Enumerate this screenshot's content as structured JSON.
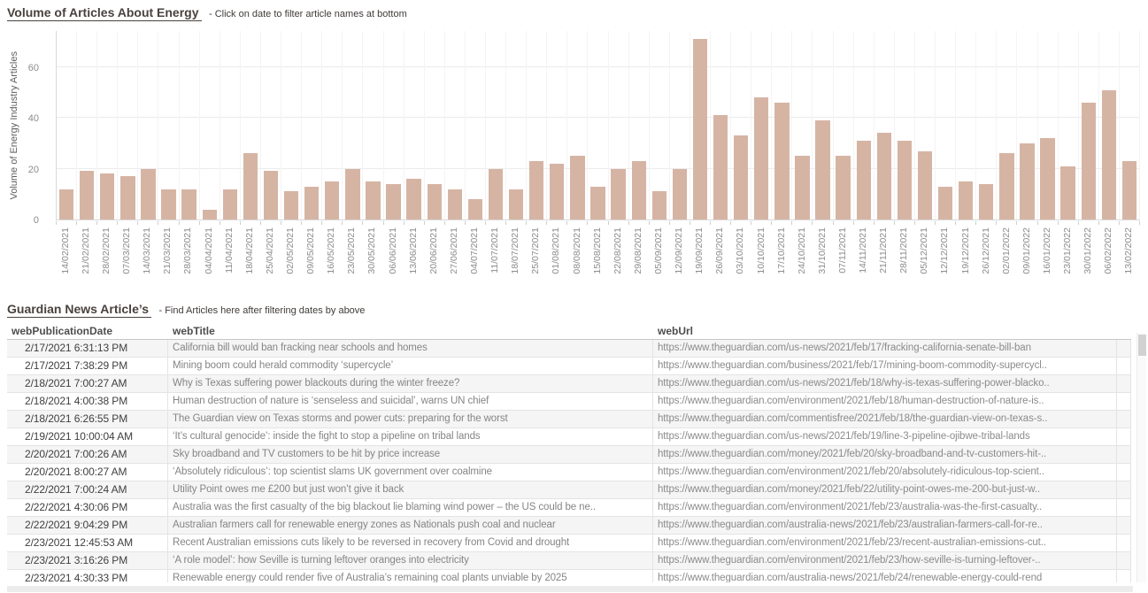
{
  "chart": {
    "title": "Volume of Articles About Energy",
    "subtitle": "- Click on date to filter article names at bottom",
    "y_axis_label": "Volume of Energy Industry Articles"
  },
  "chart_data": {
    "type": "bar",
    "title": "Volume of Articles About Energy",
    "xlabel": "",
    "ylabel": "Volume of Energy Industry Articles",
    "yticks": [
      0,
      20,
      40,
      60
    ],
    "ylim": [
      0,
      75
    ],
    "grid": true,
    "bar_color": "#d6b4a4",
    "categories": [
      "14/02/2021",
      "21/02/2021",
      "28/02/2021",
      "07/03/2021",
      "14/03/2021",
      "21/03/2021",
      "28/03/2021",
      "04/04/2021",
      "11/04/2021",
      "18/04/2021",
      "25/04/2021",
      "02/05/2021",
      "09/05/2021",
      "16/05/2021",
      "23/05/2021",
      "30/05/2021",
      "06/06/2021",
      "13/06/2021",
      "20/06/2021",
      "27/06/2021",
      "04/07/2021",
      "11/07/2021",
      "18/07/2021",
      "25/07/2021",
      "01/08/2021",
      "08/08/2021",
      "15/08/2021",
      "22/08/2021",
      "29/08/2021",
      "05/09/2021",
      "12/09/2021",
      "19/09/2021",
      "26/09/2021",
      "03/10/2021",
      "10/10/2021",
      "17/10/2021",
      "24/10/2021",
      "31/10/2021",
      "07/11/2021",
      "14/11/2021",
      "21/11/2021",
      "28/11/2021",
      "05/12/2021",
      "12/12/2021",
      "19/12/2021",
      "26/12/2021",
      "02/01/2022",
      "09/01/2022",
      "16/01/2022",
      "23/01/2022",
      "30/01/2022",
      "06/02/2022",
      "13/02/2022"
    ],
    "values": [
      12,
      19,
      18,
      17,
      20,
      12,
      12,
      4,
      12,
      26,
      19,
      11,
      13,
      15,
      20,
      15,
      14,
      16,
      14,
      12,
      8,
      20,
      12,
      23,
      22,
      25,
      13,
      20,
      23,
      11,
      20,
      71,
      41,
      33,
      48,
      46,
      25,
      39,
      25,
      31,
      34,
      31,
      27,
      13,
      15,
      14,
      26,
      30,
      32,
      21,
      46,
      51,
      23
    ]
  },
  "table": {
    "title": "Guardian News Article’s",
    "subtitle": "- Find Articles here after filtering dates by above",
    "columns": [
      "webPublicationDate",
      "webTitle",
      "webUrl"
    ],
    "rows": [
      {
        "date": "2/17/2021 6:31:13 PM",
        "title": "California bill would ban fracking near schools and homes",
        "url": "https://www.theguardian.com/us-news/2021/feb/17/fracking-california-senate-bill-ban"
      },
      {
        "date": "2/17/2021 7:38:29 PM",
        "title": "Mining boom could herald commodity ‘supercycle’",
        "url": "https://www.theguardian.com/business/2021/feb/17/mining-boom-commodity-supercycl.."
      },
      {
        "date": "2/18/2021 7:00:27 AM",
        "title": "Why is Texas suffering power blackouts during the winter freeze?",
        "url": "https://www.theguardian.com/us-news/2021/feb/18/why-is-texas-suffering-power-blacko.."
      },
      {
        "date": "2/18/2021 4:00:38 PM",
        "title": "Human destruction of nature is ‘senseless and suicidal’, warns UN chief",
        "url": "https://www.theguardian.com/environment/2021/feb/18/human-destruction-of-nature-is.."
      },
      {
        "date": "2/18/2021 6:26:55 PM",
        "title": "The Guardian view on Texas storms and power cuts: preparing for the worst",
        "url": "https://www.theguardian.com/commentisfree/2021/feb/18/the-guardian-view-on-texas-s.."
      },
      {
        "date": "2/19/2021 10:00:04 AM",
        "title": "‘It’s cultural genocide’: inside the fight to stop a pipeline on tribal lands",
        "url": "https://www.theguardian.com/us-news/2021/feb/19/line-3-pipeline-ojibwe-tribal-lands"
      },
      {
        "date": "2/20/2021 7:00:26 AM",
        "title": "Sky broadband and TV customers to be hit by price increase",
        "url": "https://www.theguardian.com/money/2021/feb/20/sky-broadband-and-tv-customers-hit-.."
      },
      {
        "date": "2/20/2021 8:00:27 AM",
        "title": "‘Absolutely ridiculous’: top scientist slams UK government over coalmine",
        "url": "https://www.theguardian.com/environment/2021/feb/20/absolutely-ridiculous-top-scient.."
      },
      {
        "date": "2/22/2021 7:00:24 AM",
        "title": "Utility Point owes me £200 but just won’t give it back",
        "url": "https://www.theguardian.com/money/2021/feb/22/utility-point-owes-me-200-but-just-w.."
      },
      {
        "date": "2/22/2021 4:30:06 PM",
        "title": "Australia was the first casualty of the big blackout lie blaming wind power – the US could be ne..",
        "url": "https://www.theguardian.com/environment/2021/feb/23/australia-was-the-first-casualty.."
      },
      {
        "date": "2/22/2021 9:04:29 PM",
        "title": "Australian farmers call for renewable energy zones as Nationals push coal and nuclear",
        "url": "https://www.theguardian.com/australia-news/2021/feb/23/australian-farmers-call-for-re.."
      },
      {
        "date": "2/23/2021 12:45:53 AM",
        "title": "Recent Australian emissions cuts likely to be reversed in recovery from Covid and drought",
        "url": "https://www.theguardian.com/environment/2021/feb/23/recent-australian-emissions-cut.."
      },
      {
        "date": "2/23/2021 3:16:26 PM",
        "title": "‘A role model’: how Seville is turning leftover oranges into electricity",
        "url": "https://www.theguardian.com/environment/2021/feb/23/how-seville-is-turning-leftover-.."
      },
      {
        "date": "2/23/2021 4:30:33 PM",
        "title": "Renewable energy could render five of Australia’s remaining coal plants unviable by 2025",
        "url": "https://www.theguardian.com/australia-news/2021/feb/24/renewable-energy-could-rend"
      }
    ]
  }
}
